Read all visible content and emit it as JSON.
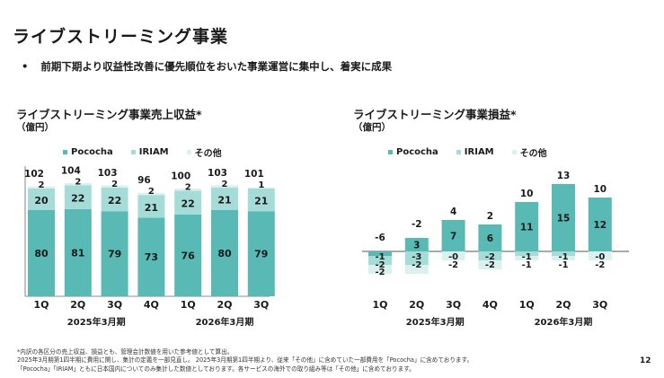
{
  "page": {
    "title": "ライブストリーミング事業",
    "bullet_mark": "•",
    "bullet": "前期下期より収益性改善に優先順位をおいた事業運営に集中し、着実に成果",
    "footnotes": [
      "*内訳の各区分の売上収益、損益とも、管理会計数値を用いた参考値として算出。",
      "2025年3月期第1四半期に費用に関し、集計の定義を一部見直し。 2025年3月期第1四半期より、従来「その他」に含めていた一部費用を「Pococha」に含めております。",
      "「Pococha」「IRIAM」ともに日本国内についてのみ集計した数値としております。各サービスの海外での取り組み等は「その他」に含めております。"
    ],
    "page_number": "12"
  },
  "colors": {
    "pococha": "#59b9b4",
    "iriam": "#a6dcd8",
    "other": "#daf1ef",
    "axis": "#555555"
  },
  "chart_data": [
    {
      "type": "bar",
      "stacked": true,
      "title": "ライブストリーミング事業売上収益*",
      "unit": "（億円）",
      "categories": [
        "1Q",
        "2Q",
        "3Q",
        "4Q",
        "1Q",
        "2Q",
        "3Q"
      ],
      "period_labels": [
        {
          "label": "2025年3月期",
          "categories": [
            "1Q",
            "2Q",
            "3Q",
            "4Q"
          ]
        },
        {
          "label": "2026年3月期",
          "categories": [
            "1Q",
            "2Q",
            "3Q"
          ]
        }
      ],
      "series": [
        {
          "name": "Pococha",
          "values": [
            80,
            81,
            79,
            73,
            76,
            80,
            79
          ]
        },
        {
          "name": "IRIAM",
          "values": [
            20,
            22,
            22,
            21,
            22,
            21,
            21
          ]
        },
        {
          "name": "その他",
          "values": [
            2,
            2,
            2,
            2,
            2,
            2,
            1
          ]
        }
      ],
      "totals": [
        102,
        104,
        103,
        96,
        100,
        103,
        101
      ],
      "legend": "top",
      "ylim": [
        0,
        115
      ]
    },
    {
      "type": "bar",
      "stacked": true,
      "title": "ライブストリーミング事業損益*",
      "unit": "（億円）",
      "categories": [
        "1Q",
        "2Q",
        "3Q",
        "4Q",
        "1Q",
        "2Q",
        "3Q"
      ],
      "period_labels": [
        {
          "label": "2025年3月期",
          "categories": [
            "1Q",
            "2Q",
            "3Q",
            "4Q"
          ]
        },
        {
          "label": "2026年3月期",
          "categories": [
            "1Q",
            "2Q",
            "3Q"
          ]
        }
      ],
      "series": [
        {
          "name": "Pococha",
          "values": [
            -1,
            3,
            7,
            6,
            11,
            15,
            12
          ]
        },
        {
          "name": "IRIAM",
          "values": [
            -2,
            -3,
            0,
            -2,
            -1,
            -1,
            0
          ]
        },
        {
          "name": "その他",
          "values": [
            -2,
            -2,
            -2,
            -2,
            -1,
            -1,
            -2
          ]
        }
      ],
      "series_labels": {
        "Pococha": [
          "-1",
          "3",
          "7",
          "6",
          "11",
          "15",
          "12"
        ],
        "IRIAM": [
          "-2",
          "-3",
          "-0",
          "-2",
          "-1",
          "-1",
          "-0"
        ],
        "その他": [
          "-2",
          "-2",
          "-2",
          "-2",
          "-1",
          "-1",
          "-2"
        ]
      },
      "totals": [
        -6,
        -2,
        4,
        2,
        10,
        13,
        10
      ],
      "legend": "top",
      "ylim": [
        -7,
        15
      ]
    }
  ]
}
